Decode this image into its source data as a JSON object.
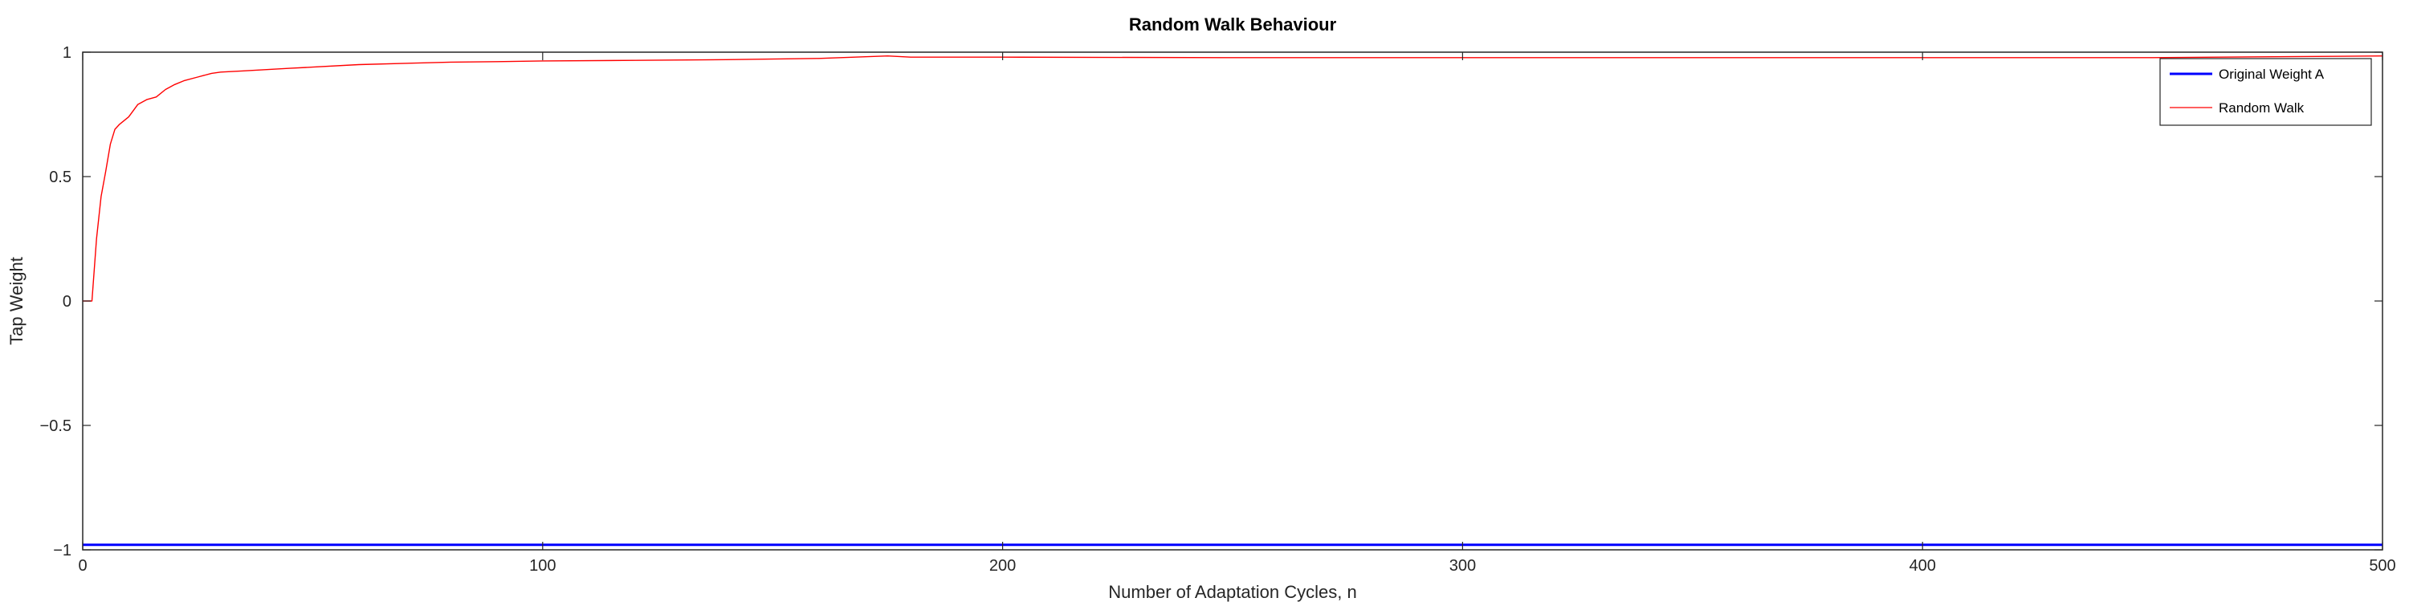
{
  "chart_data": {
    "type": "line",
    "title": "Random Walk Behaviour",
    "xlabel": "Number of Adaptation Cycles, n",
    "ylabel": "Tap Weight",
    "xlim": [
      0,
      500
    ],
    "ylim": [
      -1,
      1
    ],
    "xticks": [
      0,
      100,
      200,
      300,
      400,
      500
    ],
    "xtick_labels": [
      "0",
      "100",
      "200",
      "300",
      "400",
      "500"
    ],
    "yticks": [
      -1,
      -0.5,
      0,
      0.5,
      1
    ],
    "ytick_labels": [
      "−1",
      "−0.5",
      "0",
      "0.5",
      "1"
    ],
    "grid": false,
    "legend_position": "top-right",
    "series": [
      {
        "name": "Original Weight A",
        "color": "#0000ff",
        "x": [
          0,
          500
        ],
        "y": [
          -0.98,
          -0.98
        ]
      },
      {
        "name": "Random Walk",
        "color": "#ff0000",
        "x": [
          0,
          1,
          2,
          3,
          4,
          5,
          6,
          7,
          8,
          10,
          12,
          14,
          16,
          18,
          20,
          22,
          25,
          28,
          30,
          35,
          40,
          45,
          50,
          60,
          70,
          80,
          90,
          100,
          120,
          140,
          160,
          175,
          180,
          200,
          250,
          300,
          350,
          400,
          450,
          500
        ],
        "y": [
          0,
          0,
          0,
          0.25,
          0.42,
          0.52,
          0.63,
          0.69,
          0.71,
          0.74,
          0.79,
          0.81,
          0.82,
          0.85,
          0.87,
          0.885,
          0.9,
          0.915,
          0.92,
          0.925,
          0.93,
          0.935,
          0.94,
          0.95,
          0.955,
          0.96,
          0.962,
          0.965,
          0.967,
          0.97,
          0.975,
          0.985,
          0.98,
          0.98,
          0.978,
          0.978,
          0.978,
          0.978,
          0.978,
          0.985
        ]
      }
    ]
  }
}
